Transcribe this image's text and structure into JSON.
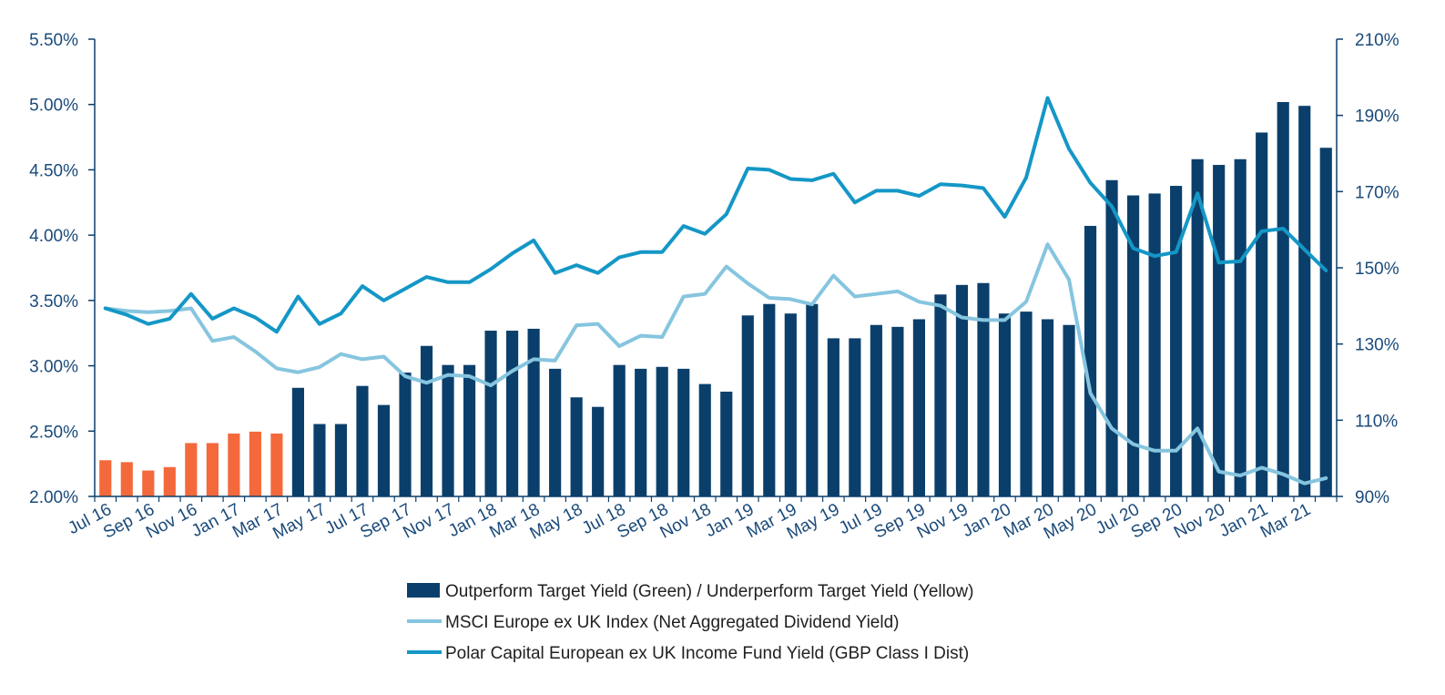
{
  "chart_data": {
    "type": "bar",
    "categories": [
      "Jul 16",
      "Aug 16",
      "Sep 16",
      "Oct 16",
      "Nov 16",
      "Dec 16",
      "Jan 17",
      "Feb 17",
      "Mar 17",
      "Apr 17",
      "May 17",
      "Jun 17",
      "Jul 17",
      "Aug 17",
      "Sep 17",
      "Oct 17",
      "Nov 17",
      "Dec 17",
      "Jan 18",
      "Feb 18",
      "Mar 18",
      "Apr 18",
      "May 18",
      "Jun 18",
      "Jul 18",
      "Aug 18",
      "Sep 18",
      "Oct 18",
      "Nov 18",
      "Dec 18",
      "Jan 19",
      "Feb 19",
      "Mar 19",
      "Apr 19",
      "May 19",
      "Jun 19",
      "Jul 19",
      "Aug 19",
      "Sep 19",
      "Oct 19",
      "Nov 19",
      "Dec 19",
      "Jan 20",
      "Feb 20",
      "Mar 20",
      "Apr 20",
      "May 20",
      "Jun 20",
      "Jul 20",
      "Aug 20",
      "Sep 20",
      "Oct 20",
      "Nov 20",
      "Dec 20",
      "Jan 21",
      "Feb 21",
      "Mar 21",
      "Apr 21"
    ],
    "x_tick_labels": [
      "Jul 16",
      "Sep 16",
      "Nov 16",
      "Jan 17",
      "Mar 17",
      "May 17",
      "Jul 17",
      "Sep 17",
      "Nov 17",
      "Jan 18",
      "Mar 18",
      "May 18",
      "Jul 18",
      "Sep 18",
      "Nov 18",
      "Jan 19",
      "Mar 19",
      "May 19",
      "Jul 19",
      "Sep 19",
      "Nov 19",
      "Jan 20",
      "Mar 20",
      "May 20",
      "Jul 20",
      "Sep 20",
      "Nov 20",
      "Jan 21",
      "Mar 21"
    ],
    "y_left": {
      "min": 2.0,
      "max": 5.5,
      "step": 0.5,
      "tick_labels": [
        "2.00%",
        "2.50%",
        "3.00%",
        "3.50%",
        "4.00%",
        "4.50%",
        "5.00%",
        "5.50%"
      ]
    },
    "y_right": {
      "min": 90,
      "max": 210,
      "step": 20,
      "tick_labels": [
        "90%",
        "110%",
        "130%",
        "150%",
        "170%",
        "190%",
        "210%"
      ]
    },
    "colors": {
      "bar_highlight": "#f4693b",
      "bar_main": "#0b3f6b",
      "msci_line": "#86c5df",
      "fund_line": "#1497c6",
      "axis": "#0b3f6b",
      "tick_text": "#1a4a7a"
    },
    "highlight_count": 9,
    "series": [
      {
        "name": "Outperform Target Yield (Green) / Underperform Target Yield (Yellow)",
        "type": "bar",
        "axis": "right",
        "values": [
          99.5,
          99.0,
          96.8,
          97.7,
          104,
          104,
          106.5,
          107,
          106.5,
          118.5,
          109,
          109,
          119,
          114,
          122.5,
          129.5,
          124.5,
          124.5,
          133.5,
          133.5,
          134,
          123.5,
          116,
          113.5,
          124.5,
          123.5,
          124,
          123.5,
          119.5,
          117.5,
          137.5,
          140.5,
          138,
          140.5,
          131.5,
          131.5,
          135,
          134.5,
          136.5,
          143,
          145.5,
          146,
          138,
          138.5,
          136.5,
          135,
          161,
          173,
          169,
          169.5,
          171.5,
          178.5,
          177,
          178.5,
          185.5,
          193.5,
          192.5,
          181.5
        ]
      },
      {
        "name": "MSCI Europe ex UK Index (Net Aggregated Dividend Yield)",
        "type": "line",
        "axis": "left",
        "values": [
          3.44,
          3.42,
          3.41,
          3.42,
          3.44,
          3.19,
          3.22,
          3.11,
          2.98,
          2.95,
          2.99,
          3.09,
          3.05,
          3.07,
          2.92,
          2.87,
          2.93,
          2.92,
          2.85,
          2.96,
          3.05,
          3.04,
          3.31,
          3.32,
          3.15,
          3.23,
          3.22,
          3.53,
          3.55,
          3.76,
          3.63,
          3.52,
          3.51,
          3.47,
          3.69,
          3.53,
          3.55,
          3.57,
          3.49,
          3.46,
          3.37,
          3.35,
          3.35,
          3.49,
          3.93,
          3.66,
          2.79,
          2.52,
          2.4,
          2.35,
          2.35,
          2.52,
          2.19,
          2.16,
          2.22,
          2.17,
          2.1,
          2.14
        ]
      },
      {
        "name": "Polar Capital European ex UK Income Fund Yield (GBP Class I Dist)",
        "type": "line",
        "axis": "left",
        "values": [
          3.44,
          3.39,
          3.32,
          3.36,
          3.55,
          3.36,
          3.44,
          3.37,
          3.26,
          3.53,
          3.32,
          3.4,
          3.61,
          3.5,
          3.59,
          3.68,
          3.64,
          3.64,
          3.74,
          3.86,
          3.96,
          3.71,
          3.77,
          3.71,
          3.83,
          3.87,
          3.87,
          4.07,
          4.01,
          4.16,
          4.51,
          4.5,
          4.43,
          4.42,
          4.47,
          4.25,
          4.34,
          4.34,
          4.3,
          4.39,
          4.38,
          4.36,
          4.14,
          4.44,
          5.05,
          4.66,
          4.4,
          4.22,
          3.9,
          3.84,
          3.87,
          4.32,
          3.79,
          3.8,
          4.03,
          4.05,
          3.89,
          3.73
        ]
      }
    ],
    "legend_position": "bottom",
    "grid": false
  }
}
